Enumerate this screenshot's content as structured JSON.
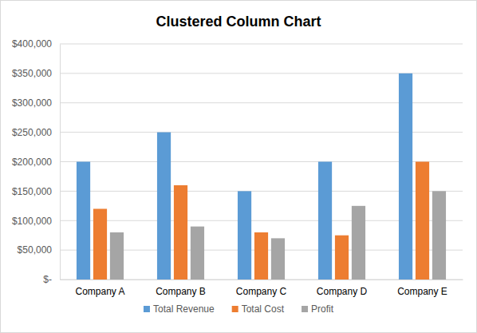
{
  "chart_data": {
    "type": "bar",
    "title": "Clustered Column Chart",
    "categories": [
      "Company A",
      "Company B",
      "Company C",
      "Company D",
      "Company E"
    ],
    "series": [
      {
        "name": "Total Revenue",
        "color": "#5b9bd5",
        "values": [
          200000,
          250000,
          150000,
          200000,
          350000
        ]
      },
      {
        "name": "Total Cost",
        "color": "#ed7d31",
        "values": [
          120000,
          160000,
          80000,
          75000,
          200000
        ]
      },
      {
        "name": "Profit",
        "color": "#a5a5a5",
        "values": [
          80000,
          90000,
          70000,
          125000,
          150000
        ]
      }
    ],
    "ylim": [
      0,
      400000
    ],
    "yticks": [
      {
        "value": 0,
        "label": "$-"
      },
      {
        "value": 50000,
        "label": "$50,000"
      },
      {
        "value": 100000,
        "label": "$100,000"
      },
      {
        "value": 150000,
        "label": "$150,000"
      },
      {
        "value": 200000,
        "label": "$200,000"
      },
      {
        "value": 250000,
        "label": "$250,000"
      },
      {
        "value": 300000,
        "label": "$300,000"
      },
      {
        "value": 350000,
        "label": "$350,000"
      },
      {
        "value": 400000,
        "label": "$400,000"
      }
    ],
    "grid": true,
    "legend": "bottom"
  }
}
